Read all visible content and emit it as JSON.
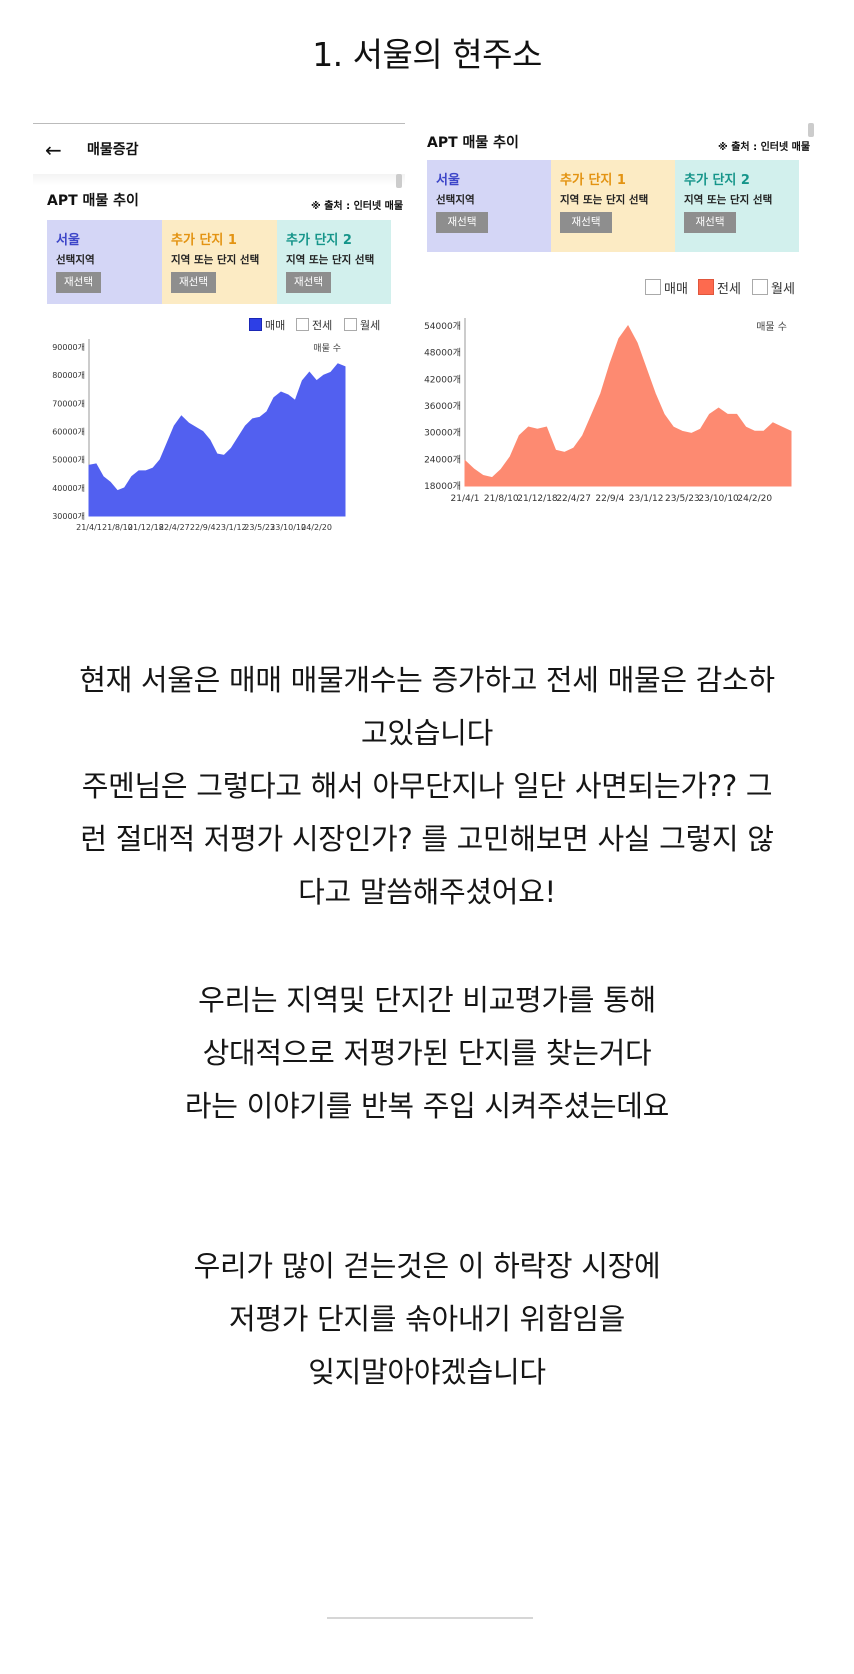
{
  "page_title": "1. 서울의 현주소",
  "left_panel": {
    "nav_title": "매물증감",
    "section_title": "APT 매물 추이",
    "source": "※ 출처 : 인터넷 매물",
    "regions": [
      {
        "name": "서울",
        "sub": "선택지역",
        "button": "재선택",
        "color": "#d4d6f6",
        "name_color": "#3c45c8"
      },
      {
        "name": "추가 단지 1",
        "sub": "지역 또는 단지 선택",
        "button": "재선택",
        "color": "#fcebc4",
        "name_color": "#e39312"
      },
      {
        "name": "추가 단지 2",
        "sub": "지역 또는 단지 선택",
        "button": "재선택",
        "color": "#d2f0ed",
        "name_color": "#16958a"
      }
    ],
    "legend": [
      {
        "label": "매매",
        "active": true
      },
      {
        "label": "전세",
        "active": false
      },
      {
        "label": "월세",
        "active": false
      }
    ]
  },
  "right_panel": {
    "section_title": "APT 매물 추이",
    "source": "※ 출처 : 인터넷 매물",
    "regions": [
      {
        "name": "서울",
        "sub": "선택지역",
        "button": "재선택",
        "color": "#d4d6f6",
        "name_color": "#3c45c8"
      },
      {
        "name": "추가 단지 1",
        "sub": "지역 또는 단지 선택",
        "button": "재선택",
        "color": "#fcebc4",
        "name_color": "#e39312"
      },
      {
        "name": "추가 단지 2",
        "sub": "지역 또는 단지 선택",
        "button": "재선택",
        "color": "#d2f0ed",
        "name_color": "#16958a"
      }
    ],
    "legend": [
      {
        "label": "매매",
        "active": false
      },
      {
        "label": "전세",
        "active": true
      },
      {
        "label": "월세",
        "active": false
      }
    ]
  },
  "chart_data": [
    {
      "type": "area",
      "series_label": "매물 수",
      "color": "#5260f0",
      "ylim": [
        30000,
        90000
      ],
      "y_ticks": [
        "90000개",
        "80000개",
        "70000개",
        "60000개",
        "50000개",
        "40000개",
        "30000개"
      ],
      "x_ticks": [
        "21/4/1",
        "21/8/10",
        "21/12/18",
        "22/4/27",
        "22/9/4",
        "23/1/12",
        "23/5/23",
        "23/10/10",
        "24/2/20"
      ],
      "x_positions": [
        0,
        1,
        2,
        3,
        4,
        5,
        6,
        7,
        8
      ],
      "x": [
        0,
        0.25,
        0.5,
        0.75,
        1.0,
        1.25,
        1.5,
        1.75,
        2.0,
        2.25,
        2.5,
        2.75,
        3.0,
        3.25,
        3.5,
        3.75,
        4.0,
        4.25,
        4.5,
        4.75,
        5.0,
        5.25,
        5.5,
        5.75,
        6.0,
        6.25,
        6.5,
        6.75,
        7.0,
        7.25,
        7.5,
        7.75,
        8.0,
        8.25,
        8.5,
        8.75,
        9.0
      ],
      "values": [
        48000,
        48500,
        44000,
        42000,
        39000,
        40000,
        44000,
        46000,
        46000,
        47000,
        50000,
        56000,
        62000,
        65500,
        63000,
        61500,
        60000,
        57000,
        52000,
        51500,
        54000,
        58000,
        62000,
        64500,
        65000,
        67000,
        72000,
        74000,
        73000,
        71000,
        78000,
        81000,
        78000,
        80000,
        81000,
        84000,
        83000
      ]
    },
    {
      "type": "area",
      "series_label": "매물 수",
      "color": "#fd8a71",
      "ylim": [
        18000,
        56000
      ],
      "y_ticks": [
        "54000개",
        "48000개",
        "42000개",
        "36000개",
        "30000개",
        "24000개",
        "18000개"
      ],
      "x_ticks": [
        "21/4/1",
        "21/8/10",
        "21/12/18",
        "22/4/27",
        "22/9/4",
        "23/1/12",
        "23/5/23",
        "23/10/10",
        "24/2/20"
      ],
      "x_positions": [
        0,
        1,
        2,
        3,
        4,
        5,
        6,
        7,
        8
      ],
      "x": [
        0,
        0.25,
        0.5,
        0.75,
        1.0,
        1.25,
        1.5,
        1.75,
        2.0,
        2.25,
        2.5,
        2.75,
        3.0,
        3.25,
        3.5,
        3.75,
        4.0,
        4.25,
        4.5,
        4.75,
        5.0,
        5.25,
        5.5,
        5.75,
        6.0,
        6.25,
        6.5,
        6.75,
        7.0,
        7.25,
        7.5,
        7.75,
        8.0,
        8.25,
        8.5,
        8.75,
        9.0
      ],
      "values": [
        24000,
        22000,
        20500,
        20000,
        22000,
        25000,
        30000,
        32000,
        31500,
        32000,
        26500,
        26000,
        27000,
        30000,
        35000,
        40000,
        47000,
        53000,
        56000,
        52000,
        46000,
        40000,
        35000,
        32000,
        31000,
        30500,
        31500,
        35000,
        36500,
        35000,
        35000,
        32000,
        31000,
        31000,
        33000,
        32000,
        31000
      ]
    }
  ],
  "paragraphs": [
    [
      "현재 서울은 매매 매물개수는 증가하고 전세 매물은 감소하",
      "고있습니다",
      "주멘님은 그렇다고 해서 아무단지나 일단 사면되는가?? 그",
      "런 절대적 저평가 시장인가? 를 고민해보면 사실 그렇지 않",
      "다고 말씀해주셨어요!"
    ],
    [
      "우리는 지역및 단지간 비교평가를 통해",
      "상대적으로 저평가된 단지를 찾는거다",
      "라는 이야기를 반복 주입 시켜주셨는데요"
    ],
    [
      "우리가 많이 걷는것은 이 하락장 시장에",
      "저평가 단지를 솎아내기 위함임을",
      "잊지말아야겠습니다"
    ]
  ]
}
